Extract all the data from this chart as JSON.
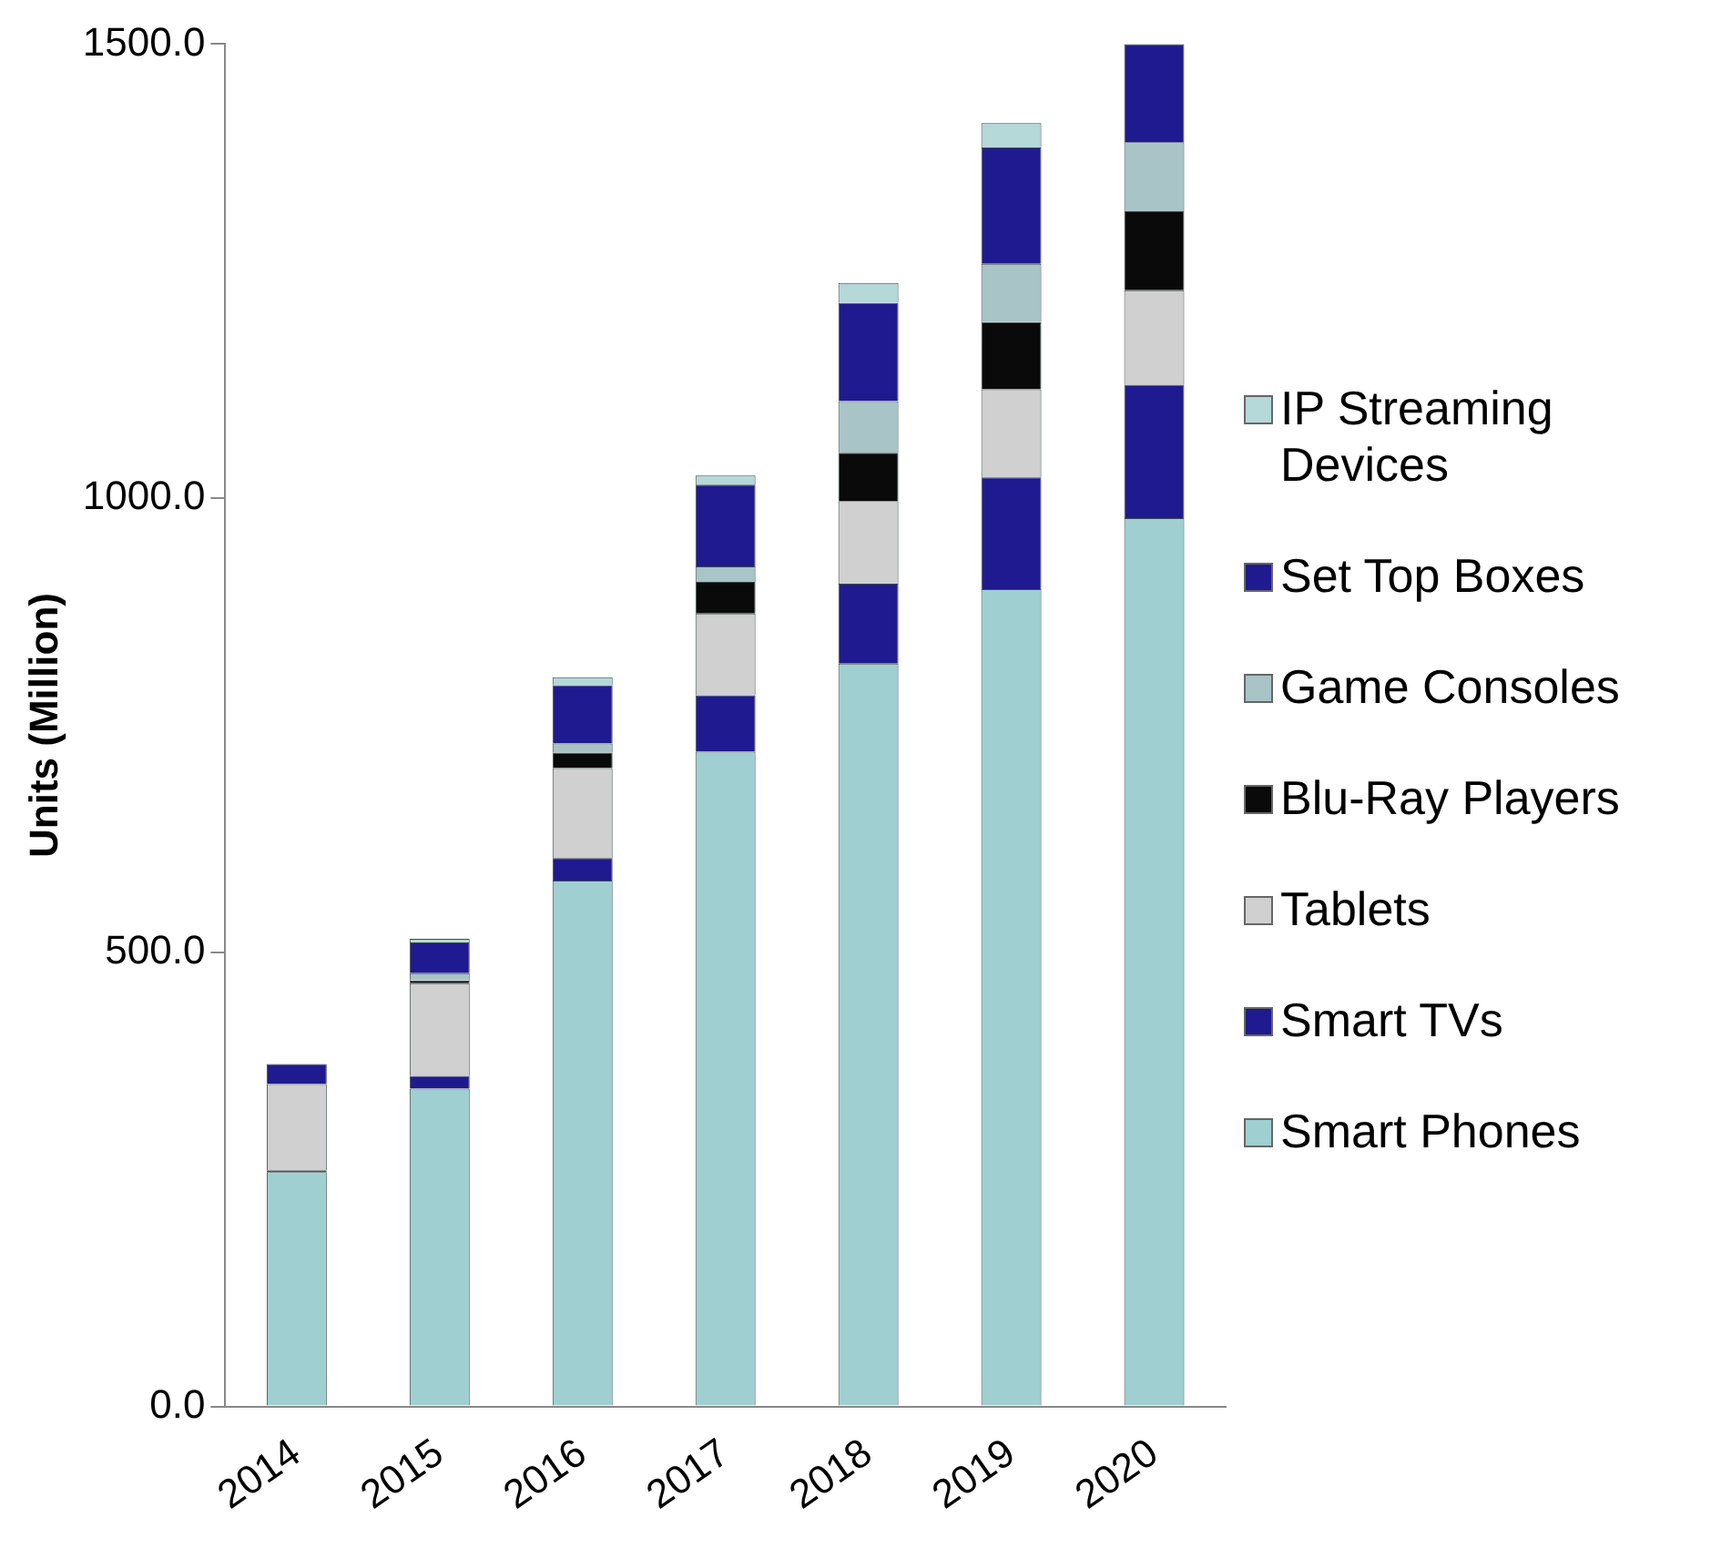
{
  "chart_data": {
    "type": "bar",
    "stacked": true,
    "ylabel": "Units (Million)",
    "categories": [
      "2014",
      "2015",
      "2016",
      "2017",
      "2018",
      "2019",
      "2020"
    ],
    "series": [
      {
        "name": "Smart Phones",
        "color": "#9fcfd0",
        "values": [
          258,
          350,
          579,
          721,
          818,
          900,
          978
        ]
      },
      {
        "name": "Smart TVs",
        "color": "#1f1a8f",
        "values": [
          2,
          14,
          25,
          62,
          88,
          123,
          147
        ]
      },
      {
        "name": "Tablets",
        "color": "#d0d0d0",
        "values": [
          95,
          102,
          99,
          90,
          91,
          97,
          104
        ]
      },
      {
        "name": "Blu-Ray Players",
        "color": "#0a0a0a",
        "values": [
          0,
          3,
          17,
          35,
          53,
          74,
          87
        ]
      },
      {
        "name": "Game Consoles",
        "color": "#a9c4c6",
        "values": [
          0,
          8,
          10,
          17,
          57,
          64,
          76
        ]
      },
      {
        "name": "Set Top Boxes",
        "color": "#1f1a8f",
        "values": [
          22,
          34,
          64,
          90,
          108,
          128,
          108
        ]
      },
      {
        "name": "IP Streaming Devices",
        "color": "#b5d8d8",
        "values": [
          0,
          4,
          9,
          10,
          22,
          27,
          0
        ]
      }
    ],
    "ylim": [
      0,
      1500
    ],
    "yticks": [
      {
        "value": 0,
        "label": "0.0"
      },
      {
        "value": 500,
        "label": "500.0"
      },
      {
        "value": 1000,
        "label": "1000.0"
      },
      {
        "value": 1500,
        "label": "1500.0"
      }
    ],
    "grid": false,
    "legend": "right"
  }
}
